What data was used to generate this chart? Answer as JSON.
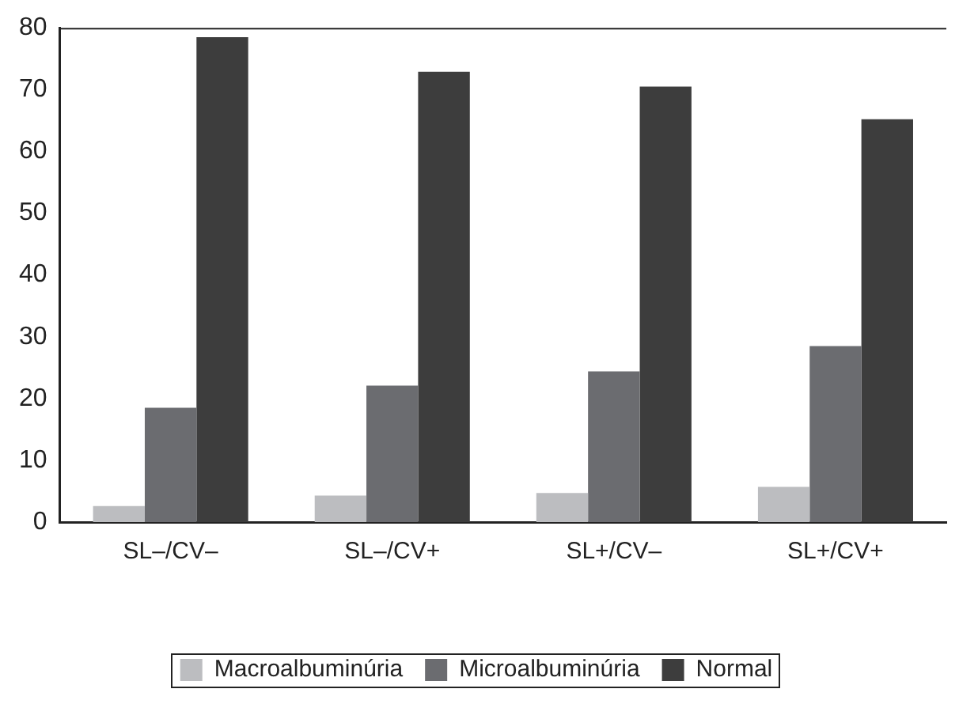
{
  "chart_data": {
    "type": "bar",
    "categories": [
      "SL–/CV–",
      "SL–/CV+",
      "SL+/CV–",
      "SL+/CV+"
    ],
    "series": [
      {
        "name": "Macroalbuminúria",
        "color": "#bcbdc0",
        "values": [
          2.6,
          4.3,
          4.7,
          5.7
        ]
      },
      {
        "name": "Microalbuminúria",
        "color": "#6b6c70",
        "values": [
          18.5,
          22.1,
          24.4,
          28.5
        ]
      },
      {
        "name": "Normal",
        "color": "#3d3d3d",
        "values": [
          78.5,
          72.9,
          70.5,
          65.2
        ]
      }
    ],
    "ylim": [
      0,
      80
    ],
    "yticks": [
      0,
      10,
      20,
      30,
      40,
      50,
      60,
      70,
      80
    ],
    "grid": false,
    "legend": "bottom"
  }
}
